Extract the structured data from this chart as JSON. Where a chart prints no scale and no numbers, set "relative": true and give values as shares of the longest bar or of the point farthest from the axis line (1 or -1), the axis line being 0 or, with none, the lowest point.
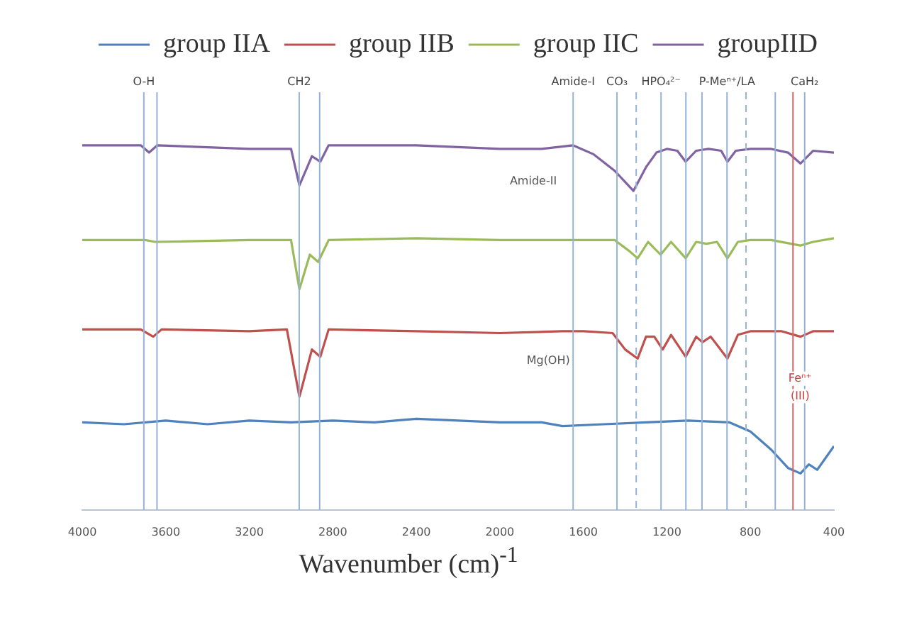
{
  "chart_data": {
    "type": "line",
    "relative": true,
    "xlabel": "Wavenumber (cm)$^{-1}$",
    "xlim": [
      4000,
      400
    ],
    "xticks": [
      4000,
      3600,
      3200,
      2800,
      2400,
      2000,
      1600,
      1200,
      800,
      400
    ],
    "legend": "top",
    "grid": false,
    "marker": "none",
    "line_style": "solid",
    "series": [
      {
        "name": "group IIA",
        "color": "#4f81bd",
        "x": [
          4000,
          3800,
          3600,
          3400,
          3200,
          3000,
          2800,
          2600,
          2400,
          2200,
          2000,
          1800,
          1700,
          1500,
          1300,
          1100,
          900,
          800,
          700,
          620,
          560,
          520,
          480,
          400
        ],
        "values": [
          0.24,
          0.235,
          0.245,
          0.235,
          0.245,
          0.24,
          0.245,
          0.24,
          0.25,
          0.245,
          0.24,
          0.24,
          0.23,
          0.235,
          0.24,
          0.245,
          0.24,
          0.215,
          0.165,
          0.115,
          0.1,
          0.125,
          0.11,
          0.175
        ]
      },
      {
        "name": "group IIB",
        "color": "#c0504d",
        "x": [
          4000,
          3720,
          3660,
          3620,
          3200,
          3020,
          2960,
          2900,
          2860,
          2820,
          2400,
          2000,
          1700,
          1600,
          1460,
          1400,
          1340,
          1300,
          1260,
          1220,
          1180,
          1110,
          1060,
          1030,
          990,
          910,
          860,
          800,
          650,
          560,
          500,
          400
        ],
        "values": [
          0.495,
          0.495,
          0.475,
          0.495,
          0.49,
          0.495,
          0.31,
          0.44,
          0.42,
          0.495,
          0.49,
          0.485,
          0.49,
          0.49,
          0.485,
          0.44,
          0.415,
          0.475,
          0.475,
          0.44,
          0.48,
          0.42,
          0.475,
          0.46,
          0.475,
          0.415,
          0.48,
          0.49,
          0.49,
          0.475,
          0.49,
          0.49
        ]
      },
      {
        "name": "group IIC",
        "color": "#9bbb59",
        "x": [
          4000,
          3700,
          3650,
          3200,
          3000,
          2960,
          2910,
          2870,
          2820,
          2400,
          2000,
          1600,
          1450,
          1380,
          1340,
          1290,
          1230,
          1180,
          1110,
          1060,
          1010,
          960,
          910,
          860,
          800,
          700,
          560,
          500,
          400
        ],
        "values": [
          0.74,
          0.74,
          0.735,
          0.74,
          0.74,
          0.605,
          0.7,
          0.68,
          0.74,
          0.745,
          0.74,
          0.74,
          0.74,
          0.71,
          0.69,
          0.735,
          0.7,
          0.735,
          0.69,
          0.735,
          0.73,
          0.735,
          0.69,
          0.735,
          0.74,
          0.74,
          0.725,
          0.735,
          0.745
        ]
      },
      {
        "name": "groupIID",
        "color": "#8064a2",
        "x": [
          4000,
          3720,
          3680,
          3640,
          3200,
          3000,
          2960,
          2900,
          2860,
          2820,
          2400,
          2000,
          1800,
          1650,
          1550,
          1450,
          1360,
          1300,
          1250,
          1200,
          1150,
          1110,
          1060,
          1000,
          940,
          910,
          870,
          800,
          700,
          620,
          560,
          500,
          400
        ],
        "values": [
          1.0,
          1.0,
          0.98,
          1.0,
          0.99,
          0.99,
          0.89,
          0.97,
          0.955,
          1.0,
          1.0,
          0.99,
          0.99,
          1.0,
          0.975,
          0.93,
          0.875,
          0.94,
          0.98,
          0.99,
          0.985,
          0.955,
          0.985,
          0.99,
          0.985,
          0.955,
          0.985,
          0.99,
          0.99,
          0.98,
          0.95,
          0.985,
          0.98
        ]
      }
    ],
    "ref_lines": [
      {
        "axis": "x",
        "value": 3705,
        "label": "O-H",
        "color": "#95b3d7"
      },
      {
        "axis": "x",
        "value": 3642,
        "color": "#95b3d7"
      },
      {
        "axis": "x",
        "value": 2961,
        "label": "CH2",
        "color": "#95b3d7"
      },
      {
        "axis": "x",
        "value": 2863,
        "color": "#95b3d7"
      },
      {
        "axis": "x",
        "value": 1649,
        "label": "Amide-I",
        "color": "#95b3d7"
      },
      {
        "axis": "x",
        "value": 1439,
        "label": "CO₃",
        "color": "#95b3d7"
      },
      {
        "axis": "x",
        "value": 1347,
        "color": "#95b3d7",
        "line_style": "dashed"
      },
      {
        "axis": "x",
        "value": 1228,
        "label": "HPO₄²⁻",
        "color": "#95b3d7"
      },
      {
        "axis": "x",
        "value": 1109,
        "color": "#95b3d7"
      },
      {
        "axis": "x",
        "value": 1032,
        "color": "#95b3d7"
      },
      {
        "axis": "x",
        "value": 912,
        "label": "P-Meⁿ⁺/LA",
        "color": "#95b3d7"
      },
      {
        "axis": "x",
        "value": 821,
        "color": "#95b3d7",
        "line_style": "dashed"
      },
      {
        "axis": "x",
        "value": 681,
        "color": "#95b3d7"
      },
      {
        "axis": "x",
        "value": 596,
        "color": "#e06060"
      },
      {
        "axis": "x",
        "value": 540,
        "label": "CaH₂",
        "color": "#95b3d7"
      }
    ],
    "annotations": [
      "Amide-II",
      "Mg(OH)",
      "Feⁿ⁺",
      "(III)"
    ]
  }
}
